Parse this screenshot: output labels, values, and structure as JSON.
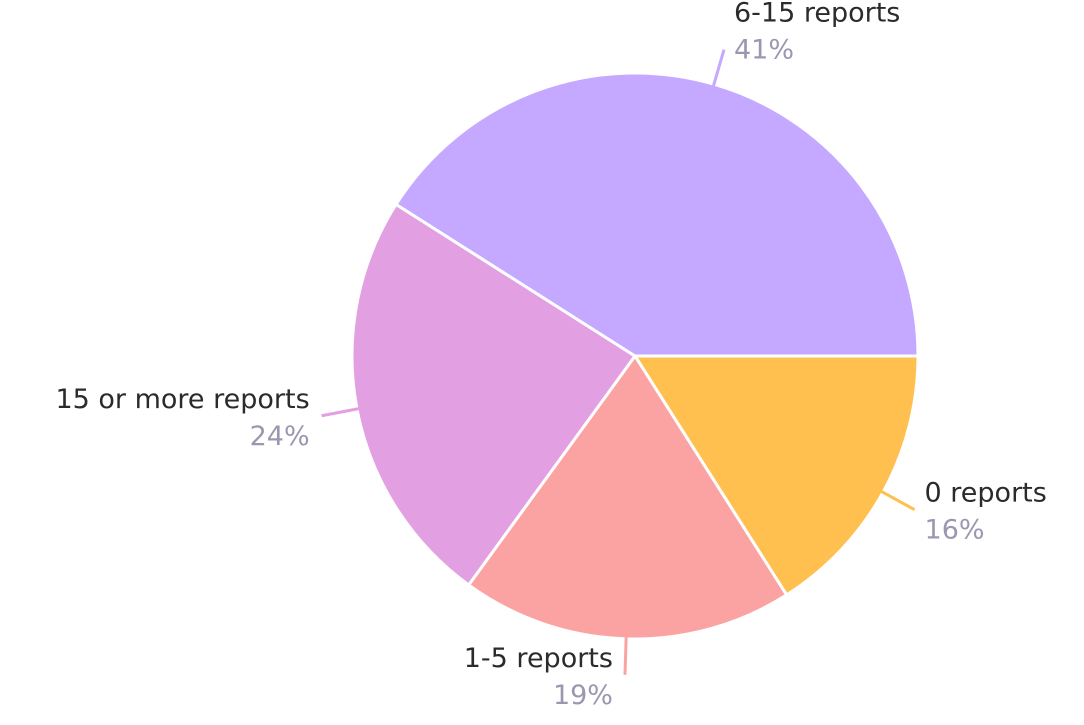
{
  "chart_data": {
    "type": "pie",
    "categories": [
      "0 reports",
      "1-5 reports",
      "15 or more reports",
      "6-15 reports"
    ],
    "values": [
      16,
      19,
      24,
      41
    ],
    "value_labels": [
      "16%",
      "19%",
      "24%",
      "41%"
    ],
    "colors": [
      "#ffc04f",
      "#fba3a2",
      "#e2a0e2",
      "#c5a8ff"
    ]
  }
}
